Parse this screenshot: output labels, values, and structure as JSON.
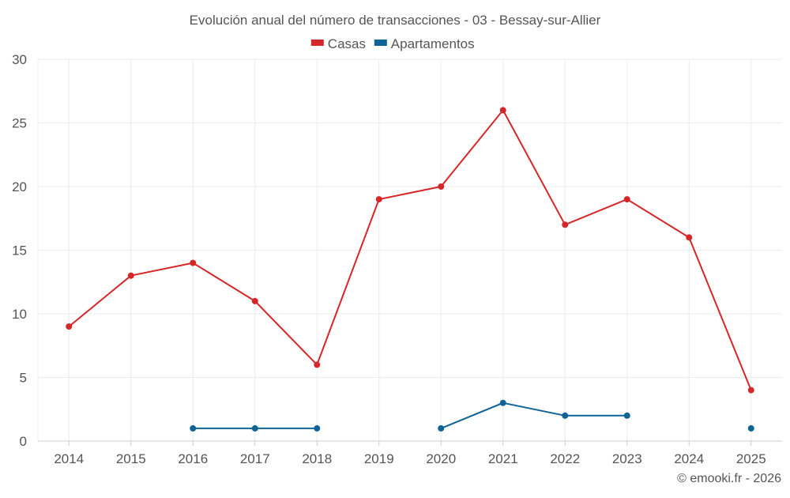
{
  "chart_data": {
    "type": "line",
    "title": "Evolución anual del número de transacciones - 03 - Bessay-sur-Allier",
    "xlabel": "",
    "ylabel": "",
    "ylim": [
      0,
      30
    ],
    "yticks": [
      0,
      5,
      10,
      15,
      20,
      25,
      30
    ],
    "grid": true,
    "legend_position": "top-center",
    "categories": [
      "2014",
      "2015",
      "2016",
      "2017",
      "2018",
      "2019",
      "2020",
      "2021",
      "2022",
      "2023",
      "2024",
      "2025"
    ],
    "series": [
      {
        "name": "Casas",
        "color": "#d62728",
        "values": [
          9,
          13,
          14,
          11,
          6,
          19,
          20,
          26,
          17,
          19,
          16,
          4
        ]
      },
      {
        "name": "Apartamentos",
        "color": "#0f6496",
        "values": [
          null,
          null,
          1,
          1,
          1,
          null,
          1,
          3,
          2,
          2,
          null,
          1
        ]
      }
    ],
    "credit": "© emooki.fr - 2026"
  }
}
